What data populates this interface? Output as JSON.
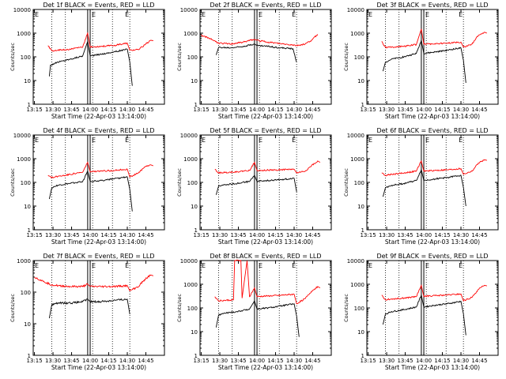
{
  "colors": {
    "events": "#000000",
    "lld": "#ff0000",
    "axes": "#000000",
    "background": "#ffffff"
  },
  "chart_data": [
    {
      "type": "line",
      "title": "Det 1f BLACK = Events, RED = LLD",
      "xlabel": "Start Time (22-Apr-03 13:14:00)",
      "ylabel": "Counts/sec",
      "yscale": "log",
      "ylim": [
        1,
        10000
      ],
      "yticks": [
        "1",
        "10",
        "100",
        "1000",
        "10000"
      ],
      "xticks": [
        "13:15",
        "13:30",
        "13:45",
        "14:00",
        "14:15",
        "14:30",
        "14:45"
      ],
      "xlim_minutes": [
        0,
        106
      ],
      "dotted_lines_minutes": [
        15,
        26,
        48,
        64,
        78
      ],
      "solid_lines_minutes": [
        44,
        46
      ],
      "markers": {
        "left": "E",
        "right": "E"
      },
      "series": [
        {
          "name": "Events",
          "color": "#000000",
          "x": [
            13,
            14,
            20,
            30,
            40,
            44,
            46,
            55,
            65,
            76,
            78,
            80
          ],
          "y": [
            15,
            45,
            60,
            80,
            110,
            450,
            110,
            130,
            160,
            210,
            60,
            6
          ]
        },
        {
          "name": "LLD",
          "color": "#ff0000",
          "x": [
            12,
            15,
            20,
            30,
            40,
            44,
            46,
            55,
            65,
            76,
            78,
            85,
            90,
            95,
            97
          ],
          "y": [
            300,
            180,
            190,
            210,
            260,
            1000,
            260,
            280,
            300,
            380,
            190,
            200,
            320,
            500,
            480
          ]
        }
      ]
    },
    {
      "type": "line",
      "title": "Det 2f BLACK = Events, RED = LLD",
      "xlabel": "Start Time (22-Apr-03 13:14:00)",
      "ylabel": "Counts/sec",
      "yscale": "log",
      "ylim": [
        1,
        10000
      ],
      "yticks": [
        "1",
        "10",
        "100",
        "1000",
        "10000"
      ],
      "xticks": [
        "13:15",
        "13:30",
        "13:45",
        "14:00",
        "14:15",
        "14:30",
        "14:45"
      ],
      "xlim_minutes": [
        0,
        106
      ],
      "dotted_lines_minutes": [
        15,
        26,
        48,
        64,
        78
      ],
      "solid_lines_minutes": [
        44,
        46
      ],
      "markers": {
        "left": "E",
        "right": "E"
      },
      "series": [
        {
          "name": "Events",
          "color": "#000000",
          "x": [
            13,
            15,
            25,
            35,
            44,
            46,
            55,
            65,
            75,
            78
          ],
          "y": [
            120,
            250,
            240,
            280,
            350,
            300,
            280,
            240,
            220,
            60
          ]
        },
        {
          "name": "LLD",
          "color": "#ff0000",
          "x": [
            1,
            8,
            15,
            25,
            35,
            44,
            46,
            55,
            65,
            75,
            78,
            85,
            90,
            95
          ],
          "y": [
            800,
            600,
            380,
            350,
            420,
            550,
            500,
            420,
            360,
            320,
            300,
            350,
            500,
            900
          ]
        }
      ]
    },
    {
      "type": "line",
      "title": "Det 3f BLACK = Events, RED = LLD",
      "xlabel": "Start Time (22-Apr-03 13:14:00)",
      "ylabel": "Counts/sec",
      "yscale": "log",
      "ylim": [
        1,
        10000
      ],
      "yticks": [
        "1",
        "10",
        "100",
        "1000",
        "10000"
      ],
      "xticks": [
        "13:15",
        "13:30",
        "13:45",
        "14:00",
        "14:15",
        "14:30",
        "14:45"
      ],
      "xlim_minutes": [
        0,
        106
      ],
      "dotted_lines_minutes": [
        15,
        26,
        48,
        64,
        78
      ],
      "solid_lines_minutes": [
        44,
        46
      ],
      "markers": {
        "left": "E",
        "right": "E"
      },
      "series": [
        {
          "name": "Events",
          "color": "#000000",
          "x": [
            13,
            15,
            20,
            30,
            40,
            44,
            46,
            55,
            65,
            76,
            78,
            80
          ],
          "y": [
            25,
            60,
            80,
            100,
            140,
            500,
            140,
            160,
            190,
            240,
            70,
            8
          ]
        },
        {
          "name": "LLD",
          "color": "#ff0000",
          "x": [
            12,
            15,
            20,
            30,
            40,
            44,
            46,
            55,
            65,
            76,
            78,
            85,
            90,
            95,
            97
          ],
          "y": [
            450,
            250,
            260,
            280,
            330,
            1500,
            340,
            360,
            380,
            420,
            260,
            350,
            800,
            1100,
            1000
          ]
        }
      ]
    },
    {
      "type": "line",
      "title": "Det 4f BLACK = Events, RED = LLD",
      "xlabel": "Start Time (22-Apr-03 13:14:00)",
      "ylabel": "Counts/sec",
      "yscale": "log",
      "ylim": [
        1,
        10000
      ],
      "yticks": [
        "1",
        "10",
        "100",
        "1000",
        "10000"
      ],
      "xticks": [
        "13:15",
        "13:30",
        "13:45",
        "14:00",
        "14:15",
        "14:30",
        "14:45"
      ],
      "xlim_minutes": [
        0,
        106
      ],
      "dotted_lines_minutes": [
        15,
        26,
        48,
        64,
        78
      ],
      "solid_lines_minutes": [
        44,
        46
      ],
      "markers": {
        "left": "E",
        "right": "E"
      },
      "series": [
        {
          "name": "Events",
          "color": "#000000",
          "x": [
            13,
            15,
            20,
            30,
            40,
            44,
            46,
            55,
            65,
            76,
            78,
            80
          ],
          "y": [
            20,
            60,
            75,
            90,
            110,
            300,
            110,
            120,
            140,
            170,
            50,
            6
          ]
        },
        {
          "name": "LLD",
          "color": "#ff0000",
          "x": [
            12,
            15,
            20,
            30,
            40,
            44,
            46,
            55,
            65,
            76,
            78,
            85,
            90,
            95,
            97
          ],
          "y": [
            200,
            160,
            180,
            220,
            270,
            700,
            280,
            300,
            320,
            360,
            170,
            250,
            450,
            550,
            500
          ]
        }
      ]
    },
    {
      "type": "line",
      "title": "Det 5f BLACK = Events, RED = LLD",
      "xlabel": "Start Time (22-Apr-03 13:14:00)",
      "ylabel": "Counts/sec",
      "yscale": "log",
      "ylim": [
        1,
        10000
      ],
      "yticks": [
        "1",
        "10",
        "100",
        "1000",
        "10000"
      ],
      "xticks": [
        "13:15",
        "13:30",
        "13:45",
        "14:00",
        "14:15",
        "14:30",
        "14:45"
      ],
      "xlim_minutes": [
        0,
        106
      ],
      "dotted_lines_minutes": [
        15,
        26,
        48,
        64,
        78
      ],
      "solid_lines_minutes": [
        44,
        46
      ],
      "markers": {
        "left": "E",
        "right": "E"
      },
      "series": [
        {
          "name": "Events",
          "color": "#000000",
          "x": [
            13,
            15,
            20,
            30,
            40,
            44,
            46,
            55,
            65,
            76,
            78
          ],
          "y": [
            30,
            70,
            80,
            90,
            110,
            200,
            110,
            120,
            130,
            150,
            40
          ]
        },
        {
          "name": "LLD",
          "color": "#ff0000",
          "x": [
            12,
            15,
            20,
            30,
            40,
            44,
            46,
            55,
            65,
            76,
            78,
            85,
            90,
            95,
            97
          ],
          "y": [
            350,
            250,
            260,
            280,
            320,
            700,
            320,
            330,
            340,
            360,
            250,
            300,
            500,
            800,
            700
          ]
        }
      ]
    },
    {
      "type": "line",
      "title": "Det 6f BLACK = Events, RED = LLD",
      "xlabel": "Start Time (22-Apr-03 13:14:00)",
      "ylabel": "Counts/sec",
      "yscale": "log",
      "ylim": [
        1,
        10000
      ],
      "yticks": [
        "1",
        "10",
        "100",
        "1000",
        "10000"
      ],
      "xticks": [
        "13:15",
        "13:30",
        "13:45",
        "14:00",
        "14:15",
        "14:30",
        "14:45"
      ],
      "xlim_minutes": [
        0,
        106
      ],
      "dotted_lines_minutes": [
        15,
        26,
        48,
        64,
        78
      ],
      "solid_lines_minutes": [
        44,
        46
      ],
      "markers": {
        "left": "E",
        "right": "E"
      },
      "series": [
        {
          "name": "Events",
          "color": "#000000",
          "x": [
            13,
            15,
            20,
            30,
            40,
            44,
            46,
            55,
            65,
            76,
            78,
            80
          ],
          "y": [
            25,
            60,
            75,
            90,
            120,
            350,
            120,
            140,
            160,
            200,
            60,
            10
          ]
        },
        {
          "name": "LLD",
          "color": "#ff0000",
          "x": [
            12,
            15,
            20,
            30,
            40,
            44,
            46,
            55,
            65,
            76,
            78,
            85,
            90,
            95,
            97
          ],
          "y": [
            250,
            200,
            220,
            250,
            300,
            800,
            300,
            320,
            340,
            380,
            220,
            300,
            650,
            900,
            850
          ]
        }
      ]
    },
    {
      "type": "line",
      "title": "Det 7f BLACK = Events, RED = LLD",
      "xlabel": "Start Time (22-Apr-03 13:14:00)",
      "ylabel": "Counts/sec",
      "yscale": "log",
      "ylim": [
        1,
        1000
      ],
      "yticks": [
        "1",
        "10",
        "100",
        "1000"
      ],
      "xticks": [
        "13:15",
        "13:30",
        "13:45",
        "14:00",
        "14:15",
        "14:30",
        "14:45"
      ],
      "xlim_minutes": [
        0,
        106
      ],
      "dotted_lines_minutes": [
        15,
        26,
        48,
        64,
        78
      ],
      "solid_lines_minutes": [
        44,
        46
      ],
      "markers": {
        "left": "E",
        "right": "E"
      },
      "series": [
        {
          "name": "Events",
          "color": "#000000",
          "x": [
            13,
            15,
            20,
            30,
            40,
            44,
            46,
            55,
            65,
            76,
            78
          ],
          "y": [
            15,
            40,
            45,
            45,
            50,
            60,
            50,
            50,
            55,
            60,
            20
          ]
        },
        {
          "name": "LLD",
          "color": "#ff0000",
          "x": [
            1,
            8,
            15,
            20,
            30,
            40,
            44,
            46,
            55,
            65,
            76,
            78,
            85,
            90,
            95,
            97
          ],
          "y": [
            300,
            220,
            170,
            160,
            150,
            150,
            180,
            150,
            150,
            150,
            160,
            110,
            150,
            250,
            350,
            330
          ]
        }
      ]
    },
    {
      "type": "line",
      "title": "Det 8f BLACK = Events, RED = LLD",
      "xlabel": "Start Time (22-Apr-03 13:14:00)",
      "ylabel": "Counts/sec",
      "yscale": "log",
      "ylim": [
        1,
        10000
      ],
      "yticks": [
        "1",
        "10",
        "100",
        "1000",
        "10000"
      ],
      "xticks": [
        "13:15",
        "13:30",
        "13:45",
        "14:00",
        "14:15",
        "14:30",
        "14:45"
      ],
      "xlim_minutes": [
        0,
        106
      ],
      "dotted_lines_minutes": [
        15,
        26,
        48,
        64,
        78
      ],
      "solid_lines_minutes": [
        44,
        46
      ],
      "markers": {
        "left": "E",
        "right": "E"
      },
      "series": [
        {
          "name": "Events",
          "color": "#000000",
          "x": [
            13,
            15,
            20,
            30,
            40,
            44,
            46,
            55,
            65,
            76,
            78,
            80
          ],
          "y": [
            15,
            50,
            60,
            70,
            90,
            200,
            90,
            100,
            120,
            150,
            45,
            6
          ]
        },
        {
          "name": "LLD",
          "color": "#ff0000",
          "x": [
            12,
            15,
            20,
            27,
            28,
            33,
            34,
            38,
            40,
            44,
            46,
            55,
            65,
            76,
            78,
            85,
            90,
            95,
            97
          ],
          "y": [
            300,
            200,
            210,
            220,
            10000,
            10000,
            260,
            10000,
            300,
            700,
            300,
            320,
            340,
            380,
            150,
            250,
            500,
            800,
            700
          ]
        }
      ]
    },
    {
      "type": "line",
      "title": "Det 9f BLACK = Events, RED = LLD",
      "xlabel": "Start Time (22-Apr-03 13:14:00)",
      "ylabel": "Counts/sec",
      "yscale": "log",
      "ylim": [
        1,
        10000
      ],
      "yticks": [
        "1",
        "10",
        "100",
        "1000",
        "10000"
      ],
      "xticks": [
        "13:15",
        "13:30",
        "13:45",
        "14:00",
        "14:15",
        "14:30",
        "14:45"
      ],
      "xlim_minutes": [
        0,
        106
      ],
      "dotted_lines_minutes": [
        15,
        26,
        48,
        64,
        78
      ],
      "solid_lines_minutes": [
        44,
        46
      ],
      "markers": {
        "left": "E",
        "right": "E"
      },
      "series": [
        {
          "name": "Events",
          "color": "#000000",
          "x": [
            13,
            15,
            20,
            30,
            40,
            44,
            46,
            55,
            65,
            76,
            78,
            80
          ],
          "y": [
            20,
            55,
            70,
            85,
            110,
            350,
            110,
            130,
            150,
            190,
            55,
            7
          ]
        },
        {
          "name": "LLD",
          "color": "#ff0000",
          "x": [
            12,
            15,
            20,
            30,
            40,
            44,
            46,
            55,
            65,
            76,
            78,
            85,
            90,
            95,
            97
          ],
          "y": [
            350,
            220,
            240,
            260,
            300,
            900,
            310,
            330,
            350,
            390,
            200,
            280,
            600,
            900,
            850
          ]
        }
      ]
    }
  ]
}
